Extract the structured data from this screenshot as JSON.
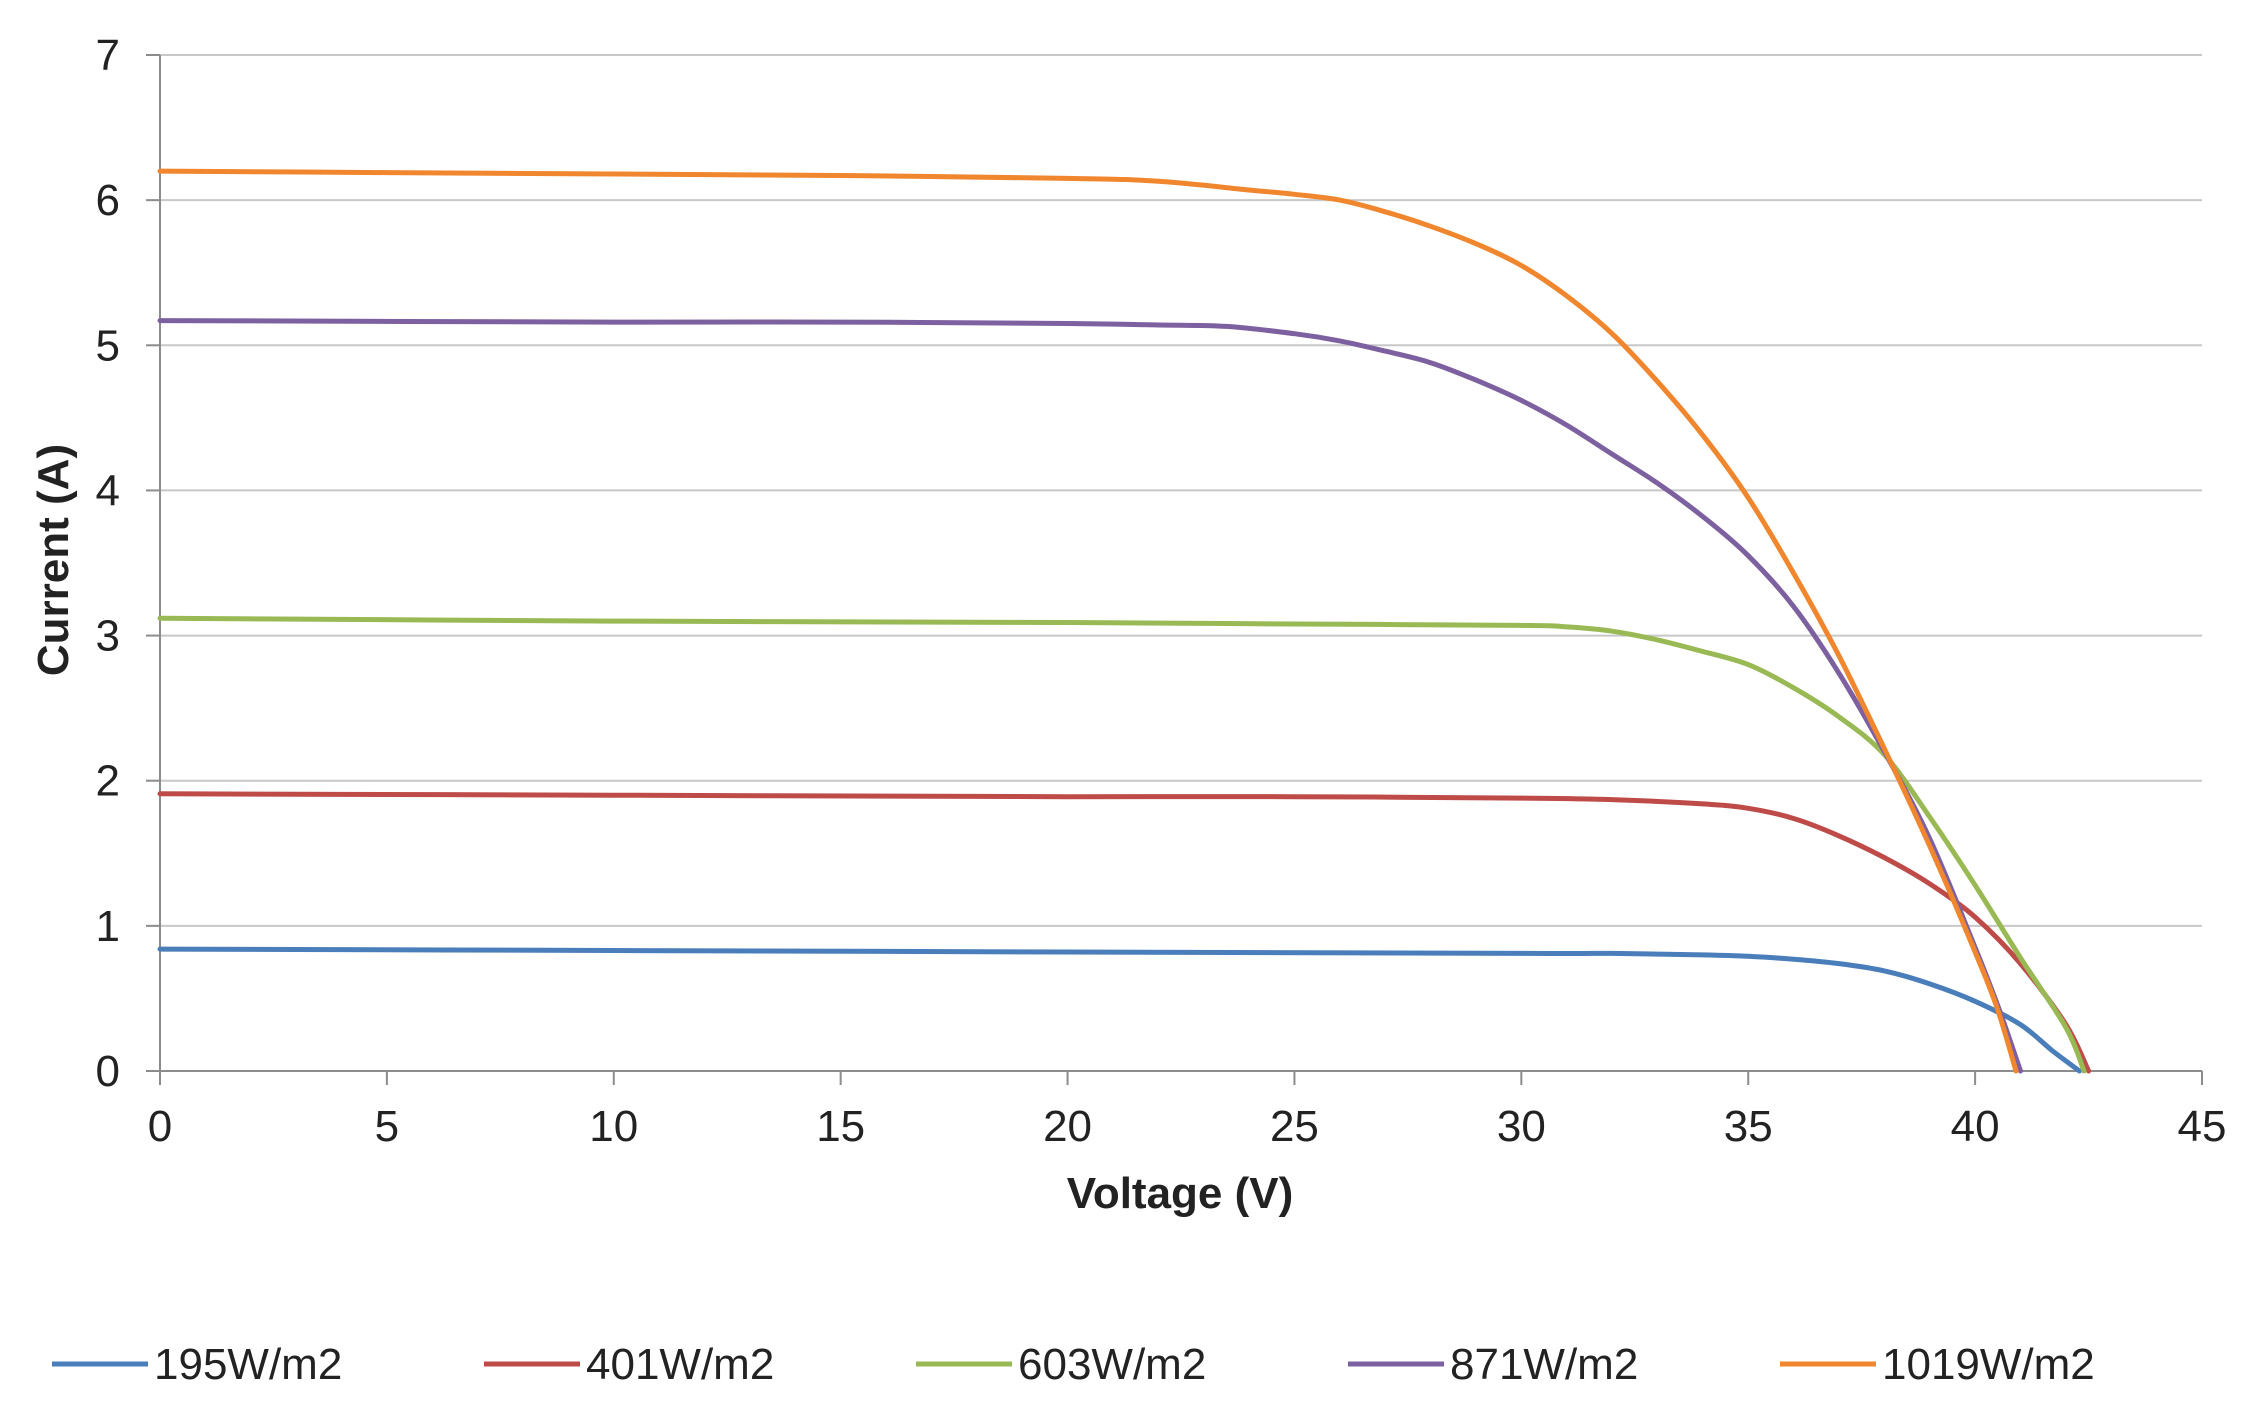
{
  "chart_data": {
    "type": "line",
    "title": "",
    "xlabel": "Voltage (V)",
    "ylabel": "Current (A)",
    "xlim": [
      0,
      45
    ],
    "ylim": [
      0,
      7
    ],
    "xticks": [
      0,
      5,
      10,
      15,
      20,
      25,
      30,
      35,
      40,
      45
    ],
    "yticks": [
      0,
      1,
      2,
      3,
      4,
      5,
      6,
      7
    ],
    "grid": "horizontal",
    "legend_position": "bottom",
    "series": [
      {
        "name": "195W/m2",
        "color": "#4a7ebb",
        "points": [
          [
            0,
            0.84
          ],
          [
            10,
            0.83
          ],
          [
            20,
            0.82
          ],
          [
            30,
            0.81
          ],
          [
            32,
            0.81
          ],
          [
            34,
            0.8
          ],
          [
            35,
            0.79
          ],
          [
            36,
            0.77
          ],
          [
            37,
            0.74
          ],
          [
            38,
            0.69
          ],
          [
            39,
            0.6
          ],
          [
            40,
            0.48
          ],
          [
            41,
            0.32
          ],
          [
            41.7,
            0.14
          ],
          [
            42.3,
            0
          ]
        ]
      },
      {
        "name": "401W/m2",
        "color": "#be4b48",
        "points": [
          [
            0,
            1.91
          ],
          [
            10,
            1.9
          ],
          [
            20,
            1.89
          ],
          [
            25,
            1.89
          ],
          [
            30,
            1.88
          ],
          [
            32,
            1.87
          ],
          [
            34,
            1.84
          ],
          [
            35,
            1.81
          ],
          [
            36,
            1.74
          ],
          [
            37,
            1.62
          ],
          [
            38,
            1.47
          ],
          [
            39,
            1.29
          ],
          [
            40,
            1.06
          ],
          [
            41,
            0.74
          ],
          [
            42,
            0.32
          ],
          [
            42.5,
            0
          ]
        ]
      },
      {
        "name": "603W/m2",
        "color": "#98b954",
        "points": [
          [
            0,
            3.12
          ],
          [
            10,
            3.1
          ],
          [
            20,
            3.09
          ],
          [
            25,
            3.08
          ],
          [
            30,
            3.07
          ],
          [
            31,
            3.06
          ],
          [
            32,
            3.03
          ],
          [
            33,
            2.97
          ],
          [
            34,
            2.89
          ],
          [
            35,
            2.8
          ],
          [
            36,
            2.64
          ],
          [
            37,
            2.44
          ],
          [
            38,
            2.18
          ],
          [
            39,
            1.75
          ],
          [
            40,
            1.28
          ],
          [
            41,
            0.78
          ],
          [
            42,
            0.3
          ],
          [
            42.4,
            0
          ]
        ]
      },
      {
        "name": "871W/m2",
        "color": "#7d60a0",
        "points": [
          [
            0,
            5.17
          ],
          [
            10,
            5.16
          ],
          [
            15,
            5.16
          ],
          [
            20,
            5.15
          ],
          [
            22,
            5.14
          ],
          [
            23.5,
            5.13
          ],
          [
            25,
            5.08
          ],
          [
            26,
            5.03
          ],
          [
            27,
            4.96
          ],
          [
            28,
            4.88
          ],
          [
            29,
            4.76
          ],
          [
            30,
            4.62
          ],
          [
            31,
            4.45
          ],
          [
            32,
            4.25
          ],
          [
            33,
            4.05
          ],
          [
            34,
            3.82
          ],
          [
            35,
            3.55
          ],
          [
            36,
            3.2
          ],
          [
            37,
            2.74
          ],
          [
            38,
            2.2
          ],
          [
            39,
            1.6
          ],
          [
            40,
            0.85
          ],
          [
            40.5,
            0.45
          ],
          [
            41,
            0
          ]
        ]
      },
      {
        "name": "1019W/m2",
        "color": "#f0862d",
        "points": [
          [
            0,
            6.2
          ],
          [
            5,
            6.19
          ],
          [
            10,
            6.18
          ],
          [
            15,
            6.17
          ],
          [
            20,
            6.15
          ],
          [
            22,
            6.13
          ],
          [
            24,
            6.07
          ],
          [
            25,
            6.04
          ],
          [
            26,
            6.0
          ],
          [
            27,
            5.92
          ],
          [
            28,
            5.82
          ],
          [
            29,
            5.7
          ],
          [
            30,
            5.55
          ],
          [
            31,
            5.34
          ],
          [
            32,
            5.08
          ],
          [
            33,
            4.75
          ],
          [
            34,
            4.38
          ],
          [
            35,
            3.95
          ],
          [
            36,
            3.43
          ],
          [
            37,
            2.86
          ],
          [
            38,
            2.22
          ],
          [
            39,
            1.55
          ],
          [
            40,
            0.82
          ],
          [
            40.5,
            0.42
          ],
          [
            40.9,
            0
          ]
        ]
      }
    ]
  }
}
